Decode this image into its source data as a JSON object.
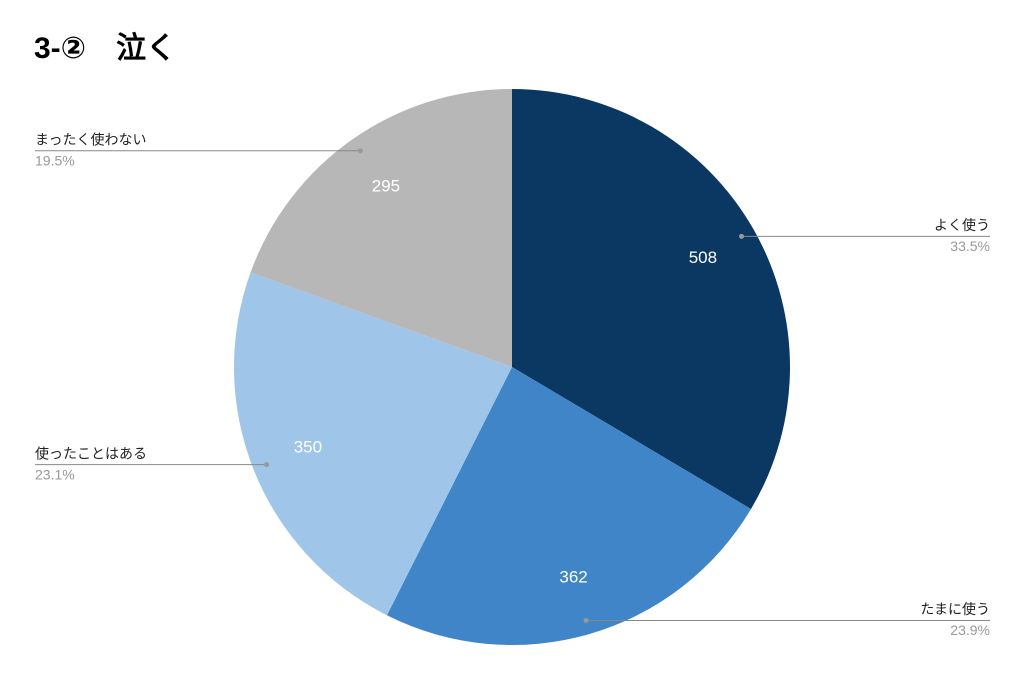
{
  "chart_data": {
    "type": "pie",
    "title": "3-②　泣く",
    "categories": [
      "よく使う",
      "たまに使う",
      "使ったことはある",
      "まったく使わない"
    ],
    "values": [
      508,
      362,
      350,
      295
    ],
    "percent_labels": [
      "33.5%",
      "23.9%",
      "23.1%",
      "19.5%"
    ],
    "colors": [
      "#0b3763",
      "#3f85c8",
      "#9fc5e8",
      "#b7b7b7"
    ]
  }
}
